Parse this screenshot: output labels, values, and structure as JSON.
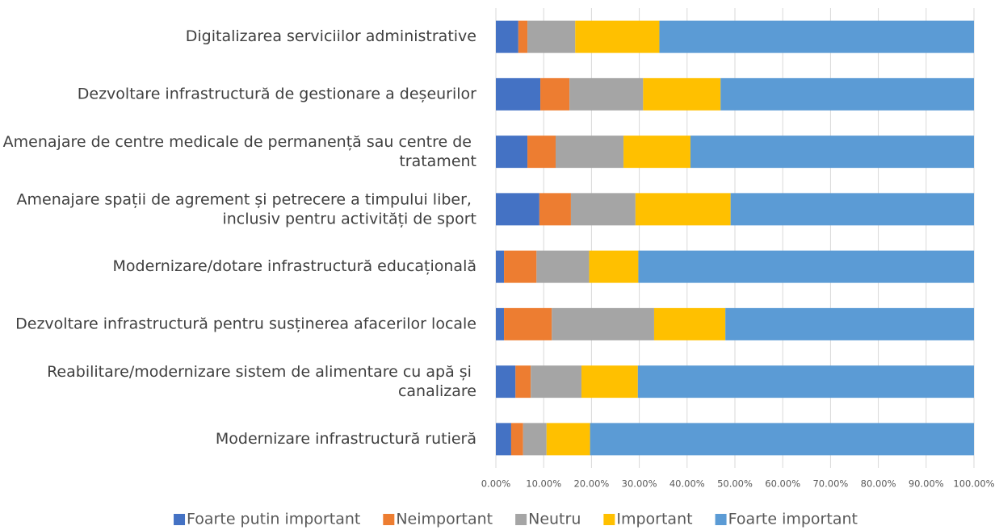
{
  "chart_data": {
    "type": "stacked-barh",
    "categories": [
      "Digitalizarea serviciilor administrative",
      "Dezvoltare infrastructură de gestionare a deșeurilor",
      "Amenajare de centre medicale de permanență sau centre de tratament",
      "Amenajare spații de agrement și petrecere a timpului liber, inclusiv pentru activități de sport",
      "Modernizare/dotare infrastructură educațională",
      "Dezvoltare infrastructură pentru susținerea afacerilor locale",
      "Reabilitare/modernizare sistem de alimentare cu apă și canalizare",
      "Modernizare infrastructură rutieră"
    ],
    "series": [
      {
        "name": "Foarte putin important",
        "color": "#4472c4",
        "values": [
          4.7,
          9.3,
          6.6,
          9.1,
          1.7,
          1.7,
          4.1,
          3.2
        ]
      },
      {
        "name": "Neimportant",
        "color": "#ed7d31",
        "values": [
          1.9,
          6.1,
          5.9,
          6.6,
          6.8,
          10.0,
          3.2,
          2.5
        ]
      },
      {
        "name": "Neutru",
        "color": "#a5a5a5",
        "values": [
          10.0,
          15.4,
          14.2,
          13.5,
          11.0,
          21.4,
          10.6,
          4.9
        ]
      },
      {
        "name": "Important",
        "color": "#ffc000",
        "values": [
          17.6,
          16.2,
          14.0,
          19.9,
          10.3,
          14.9,
          11.8,
          9.1
        ]
      },
      {
        "name": "Foarte important",
        "color": "#5b9bd5",
        "values": [
          65.8,
          53.0,
          59.3,
          50.9,
          70.2,
          52.0,
          70.3,
          80.3
        ]
      }
    ],
    "xlim": [
      0,
      100
    ],
    "xticks": [
      {
        "value": 0,
        "label": "0.00%"
      },
      {
        "value": 10,
        "label": "10.00%"
      },
      {
        "value": 20,
        "label": "20.00%"
      },
      {
        "value": 30,
        "label": "30.00%"
      },
      {
        "value": 40,
        "label": "40.00%"
      },
      {
        "value": 50,
        "label": "50.00%"
      },
      {
        "value": 60,
        "label": "60.00%"
      },
      {
        "value": 70,
        "label": "70.00%"
      },
      {
        "value": 80,
        "label": "80.00%"
      },
      {
        "value": 90,
        "label": "90.00%"
      },
      {
        "value": 100,
        "label": "100.00%"
      }
    ],
    "grid": true,
    "legend": "bottom"
  }
}
